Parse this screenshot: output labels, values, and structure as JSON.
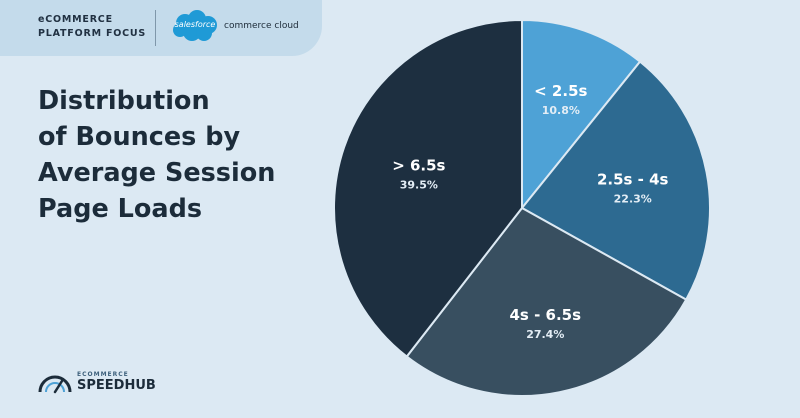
{
  "header": {
    "badge_line1": "eCOMMERCE",
    "badge_line2": "PLATFORM FOCUS",
    "partner_logo_text": "salesforce",
    "partner_product_text": "commerce cloud"
  },
  "title_lines": [
    "Distribution",
    "of Bounces by",
    "Average Session",
    "Page Loads"
  ],
  "footer": {
    "brand_small": "ECOMMERCE",
    "brand_big": "SPEEDHUB"
  },
  "colors": {
    "background": "#dce9f3",
    "badge_bg": "#c4dbeb",
    "title_text": "#1c2c3a",
    "salesforce_blue": "#1f9ad6"
  },
  "chart_data": {
    "type": "pie",
    "start": "12 o'clock",
    "direction": "clockwise",
    "legend": "none",
    "title": "Distribution of Bounces by Average Session Page Loads",
    "slices": [
      {
        "label": "< 2.5s",
        "value": 10.8,
        "display": "10.8%",
        "color": "#4ea2d6"
      },
      {
        "label": "2.5s - 4s",
        "value": 22.3,
        "display": "22.3%",
        "color": "#2d6a91"
      },
      {
        "label": "4s - 6.5s",
        "value": 27.4,
        "display": "27.4%",
        "color": "#384f60"
      },
      {
        "label": "> 6.5s",
        "value": 39.5,
        "display": "39.5%",
        "color": "#1d2f40"
      }
    ]
  }
}
